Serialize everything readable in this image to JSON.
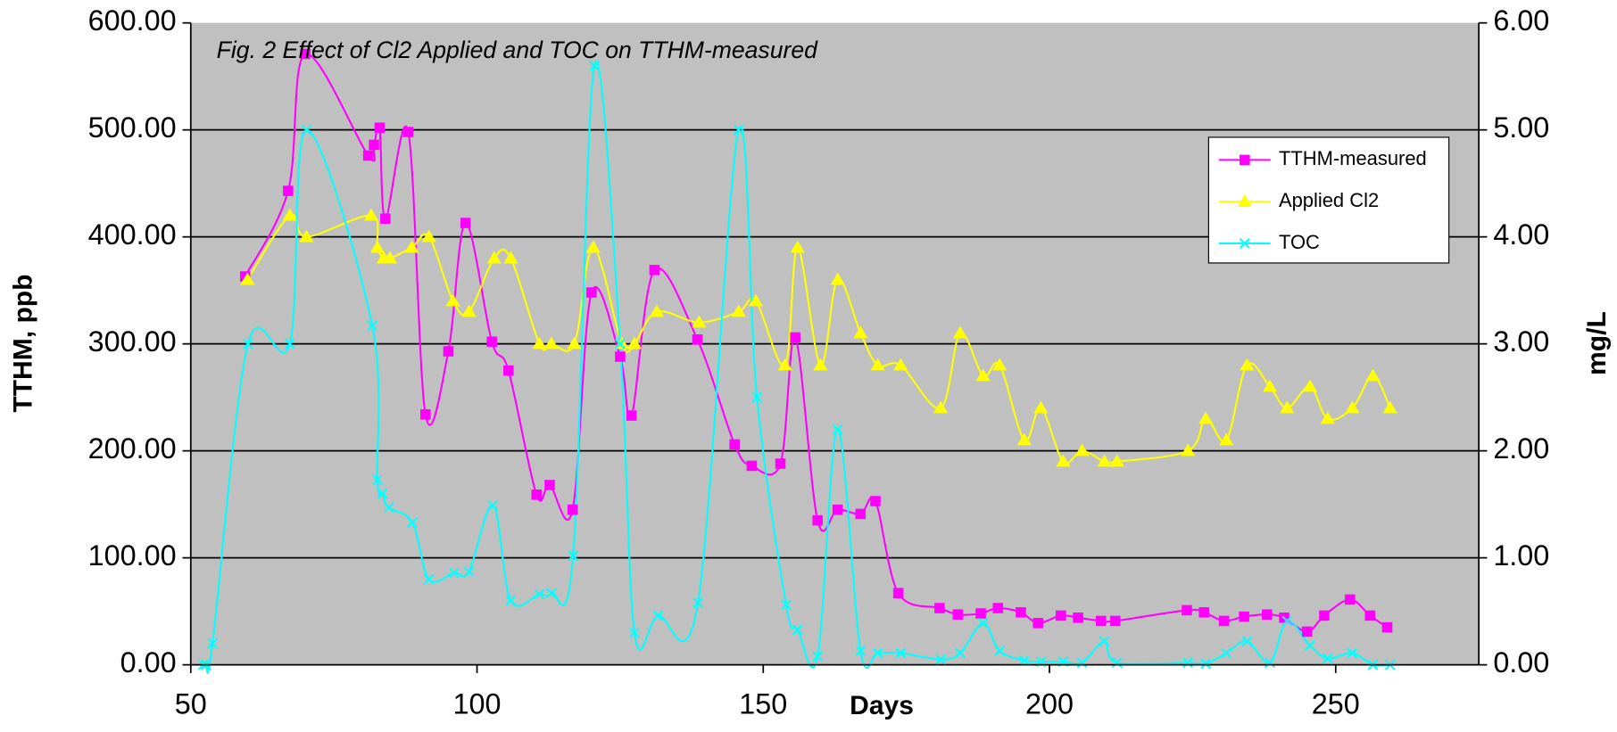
{
  "chart_data": {
    "type": "line",
    "title": "Fig. 2  Effect of Cl2 Applied and TOC on TTHM-measured",
    "x_label": "Days",
    "y_label": "TTHM, ppb",
    "y2_label": "mg/L",
    "xlim": [
      50,
      275
    ],
    "xticks": [
      50,
      100,
      150,
      200,
      250
    ],
    "ylim": [
      0,
      600
    ],
    "yticks": [
      {
        "value": 0,
        "label": "0.00"
      },
      {
        "value": 100,
        "label": "100.00"
      },
      {
        "value": 200,
        "label": "200.00"
      },
      {
        "value": 300,
        "label": "300.00"
      },
      {
        "value": 400,
        "label": "400.00"
      },
      {
        "value": 500,
        "label": "500.00"
      },
      {
        "value": 600,
        "label": "600.00"
      }
    ],
    "y2lim": [
      0,
      6
    ],
    "y2ticks": [
      {
        "value": 0,
        "label": "0.00"
      },
      {
        "value": 1,
        "label": "1.00"
      },
      {
        "value": 2,
        "label": "2.00"
      },
      {
        "value": 3,
        "label": "3.00"
      },
      {
        "value": 4,
        "label": "4.00"
      },
      {
        "value": 5,
        "label": "5.00"
      },
      {
        "value": 6,
        "label": "6.00"
      }
    ],
    "grid": true,
    "legend": "upper right",
    "series": [
      {
        "name": "TTHM-measured",
        "color": "#ff00ff",
        "marker": "square",
        "axis": "y",
        "x": [
          59.5,
          67,
          70,
          81,
          82,
          83,
          84,
          88,
          91,
          95,
          98,
          102.6,
          105.5,
          110.4,
          112.7,
          116.7,
          120,
          125,
          127,
          131,
          138.5,
          145,
          148,
          153,
          155.6,
          159.5,
          163,
          167,
          169.6,
          173.6,
          180.8,
          184,
          188,
          191,
          195,
          198,
          202,
          205,
          209,
          211.5,
          224,
          227,
          230.5,
          234,
          238,
          241,
          245,
          248,
          252.5,
          256,
          259
        ],
        "values": [
          363,
          443,
          571,
          476,
          486,
          502,
          417,
          498,
          234,
          293,
          413,
          302,
          275,
          159,
          168,
          145,
          348,
          288,
          233,
          369,
          304,
          206,
          186,
          188,
          306,
          135,
          145,
          141,
          153,
          67,
          53,
          47,
          48,
          53,
          49,
          39,
          46,
          44,
          41,
          41,
          51,
          49,
          41,
          45,
          47,
          44,
          31,
          46,
          61,
          46,
          35
        ]
      },
      {
        "name": "Applied Cl2",
        "color": "#ffff00",
        "marker": "triangle",
        "axis": "y2",
        "x": [
          59.9,
          67.3,
          70.2,
          81.5,
          82.6,
          83.7,
          84.8,
          88.6,
          91.6,
          95.8,
          98.6,
          103,
          105.9,
          110.9,
          113,
          117,
          120.3,
          125.3,
          127.5,
          131.4,
          138.8,
          145.7,
          148.7,
          153.8,
          156,
          160,
          163,
          167,
          170,
          174,
          181,
          184.4,
          188.4,
          191.3,
          195.6,
          198.5,
          202.4,
          205.7,
          209.6,
          211.8,
          224.2,
          227.3,
          230.9,
          234.5,
          238.5,
          241.5,
          245.5,
          248.6,
          252.9,
          256.5,
          259.5
        ],
        "values": [
          3.6,
          4.2,
          4.0,
          4.2,
          3.9,
          3.8,
          3.8,
          3.9,
          4.0,
          3.4,
          3.3,
          3.8,
          3.8,
          3.0,
          3.0,
          3.0,
          3.9,
          3.0,
          3.0,
          3.3,
          3.2,
          3.3,
          3.4,
          2.8,
          3.9,
          2.8,
          3.6,
          3.1,
          2.8,
          2.8,
          2.4,
          3.1,
          2.7,
          2.8,
          2.1,
          2.4,
          1.9,
          2.0,
          1.9,
          1.9,
          2.0,
          2.3,
          2.1,
          2.8,
          2.6,
          2.4,
          2.6,
          2.3,
          2.4,
          2.7,
          2.4
        ]
      },
      {
        "name": "TOC",
        "color": "#00ffff",
        "marker": "x",
        "axis": "y2",
        "x": [
          52.2,
          52.7,
          53.8,
          60,
          67.3,
          70.2,
          81.7,
          82.6,
          83.5,
          84.6,
          88.7,
          91.6,
          96,
          98.6,
          102.8,
          105.9,
          110.9,
          113,
          116.8,
          120.5,
          125,
          127.5,
          131.6,
          138.6,
          145.7,
          148.9,
          154,
          156,
          159.5,
          163,
          167,
          170,
          174,
          181,
          184.4,
          188.4,
          191.3,
          195.6,
          198.5,
          202.4,
          205.7,
          209.6,
          211.8,
          224.2,
          227.3,
          230.9,
          234.5,
          238.5,
          241.5,
          245.5,
          248.6,
          252.9,
          256.5,
          259.5
        ],
        "values": [
          0,
          0,
          0.2,
          3.0,
          3.0,
          5.0,
          3.17,
          1.73,
          1.6,
          1.47,
          1.33,
          0.8,
          0.86,
          0.87,
          1.49,
          0.6,
          0.66,
          0.67,
          1.02,
          5.6,
          3.0,
          0.3,
          0.46,
          0.58,
          5.0,
          2.5,
          0.56,
          0.33,
          0.08,
          2.2,
          0.13,
          0.11,
          0.11,
          0.05,
          0.11,
          0.39,
          0.13,
          0.04,
          0.03,
          0.03,
          0.02,
          0.22,
          0.02,
          0.02,
          0.01,
          0.11,
          0.22,
          0.02,
          0.41,
          0.18,
          0.06,
          0.11,
          0,
          0
        ]
      }
    ]
  }
}
